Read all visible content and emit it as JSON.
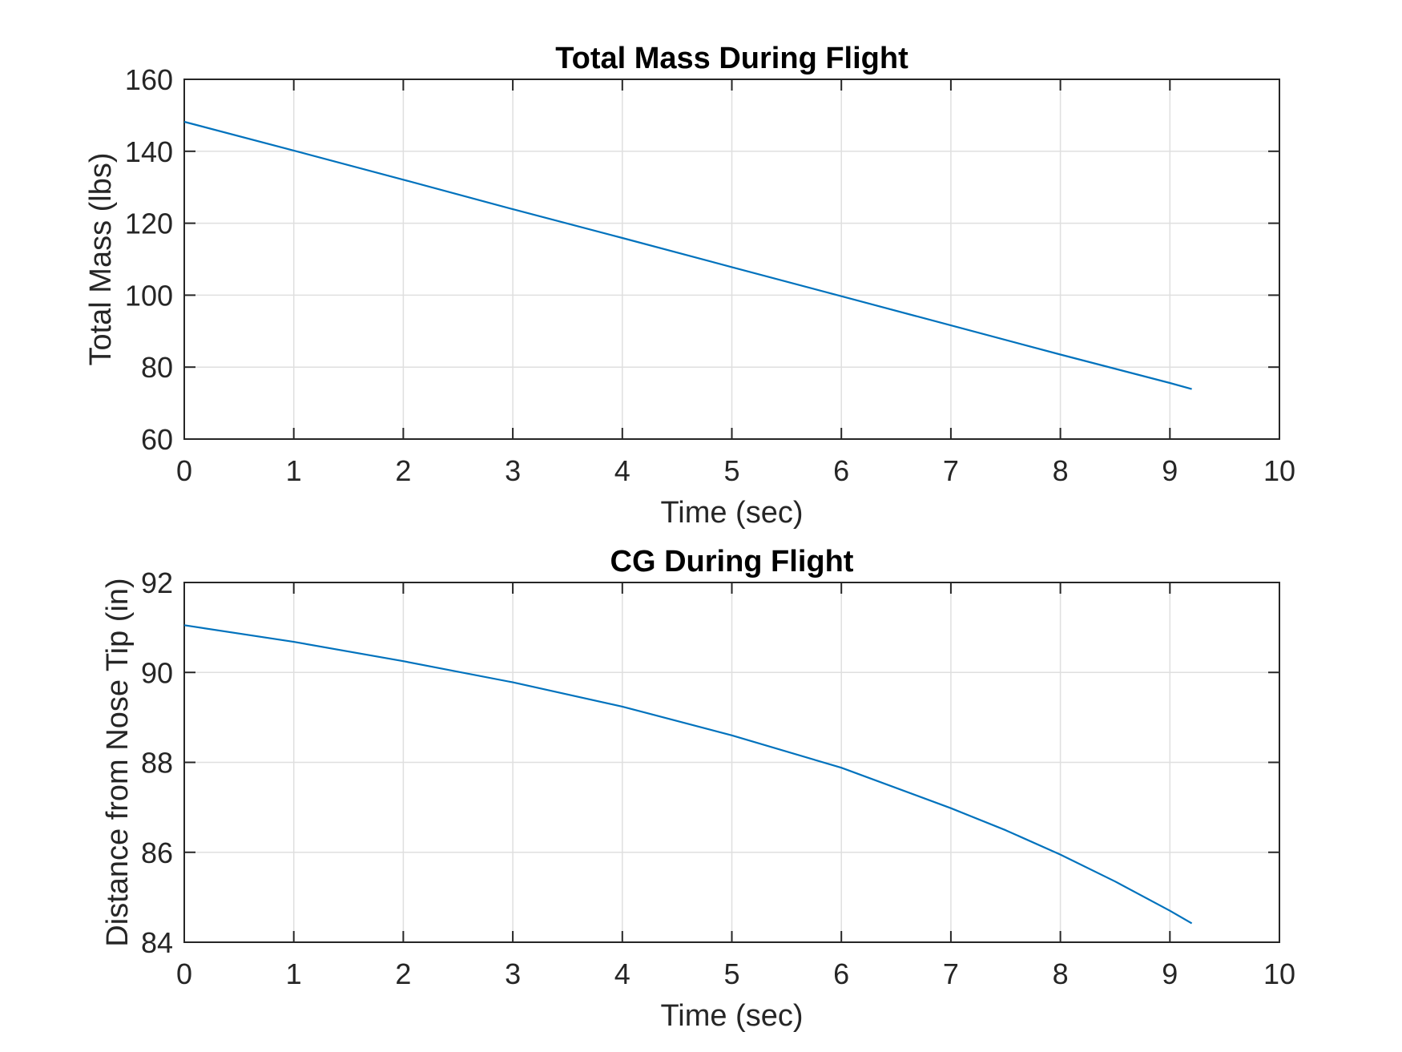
{
  "chart_data": [
    {
      "type": "line",
      "title": "Total Mass During Flight",
      "xlabel": "Time (sec)",
      "ylabel": "Total Mass (lbs)",
      "xlim": [
        0,
        10
      ],
      "ylim": [
        60,
        160
      ],
      "xticks": [
        0,
        1,
        2,
        3,
        4,
        5,
        6,
        7,
        8,
        9,
        10
      ],
      "yticks": [
        60,
        80,
        100,
        120,
        140,
        160
      ],
      "grid": true,
      "color": "#0072BD",
      "series": [
        {
          "x": [
            0,
            1,
            2,
            3,
            4,
            5,
            6,
            7,
            8,
            9,
            9.2
          ],
          "y": [
            148.2,
            140.2,
            132.1,
            123.9,
            115.9,
            107.8,
            99.7,
            91.6,
            83.5,
            75.6,
            73.9
          ]
        }
      ]
    },
    {
      "type": "line",
      "title": "CG During Flight",
      "xlabel": "Time (sec)",
      "ylabel": "Distance from Nose Tip (in)",
      "xlim": [
        0,
        10
      ],
      "ylim": [
        84,
        92
      ],
      "xticks": [
        0,
        1,
        2,
        3,
        4,
        5,
        6,
        7,
        8,
        9,
        10
      ],
      "yticks": [
        84,
        86,
        88,
        90,
        92
      ],
      "grid": true,
      "color": "#0072BD",
      "series": [
        {
          "x": [
            0,
            1,
            2,
            3,
            4,
            5,
            6,
            7,
            7.5,
            8,
            8.5,
            9,
            9.2
          ],
          "y": [
            91.05,
            90.68,
            90.25,
            89.78,
            89.24,
            88.6,
            87.88,
            86.98,
            86.49,
            85.95,
            85.35,
            84.7,
            84.42
          ]
        }
      ]
    }
  ]
}
